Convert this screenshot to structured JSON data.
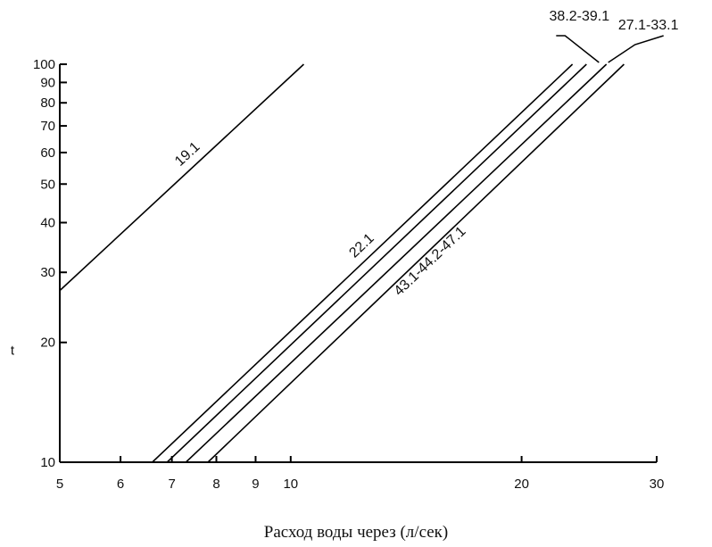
{
  "chart_data": {
    "type": "line",
    "xlabel": "Расход воды через (л/сек)",
    "ylabel": "t",
    "x_scale": "log",
    "y_scale": "log",
    "xlim": [
      5,
      30
    ],
    "ylim": [
      10,
      100
    ],
    "x_ticks": [
      5,
      6,
      7,
      8,
      9,
      10,
      20,
      30
    ],
    "y_ticks": [
      10,
      20,
      30,
      40,
      50,
      60,
      70,
      80,
      90,
      100
    ],
    "grid": false,
    "series": [
      {
        "name": "19.1",
        "points": [
          [
            5,
            27
          ],
          [
            10.4,
            100
          ]
        ]
      },
      {
        "name": "22.1",
        "points": [
          [
            6.6,
            10
          ],
          [
            23.3,
            100
          ]
        ]
      },
      {
        "name": "38.2-39.1",
        "points": [
          [
            6.9,
            10
          ],
          [
            24.3,
            100
          ]
        ]
      },
      {
        "name": "27.1-33.1",
        "points": [
          [
            7.3,
            10
          ],
          [
            25.8,
            100
          ]
        ]
      },
      {
        "name": "43.1-44.2-47.1",
        "points": [
          [
            7.8,
            10
          ],
          [
            27.2,
            100
          ]
        ]
      }
    ]
  }
}
